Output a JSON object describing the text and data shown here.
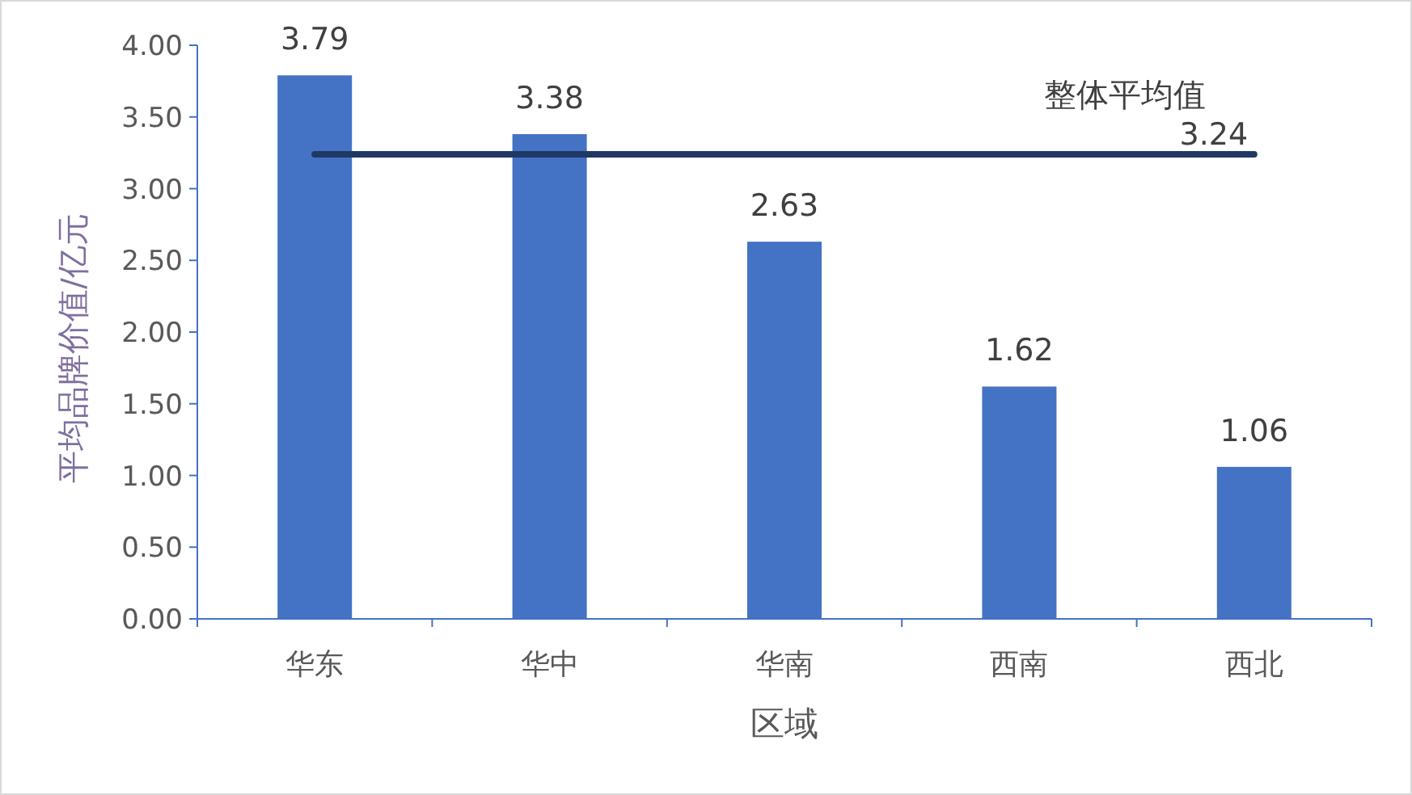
{
  "chart_data": {
    "type": "bar",
    "xlabel": "区域",
    "ylabel": "平均品牌价值/亿元",
    "categories": [
      "华东",
      "华中",
      "华南",
      "西南",
      "西北"
    ],
    "ylim": [
      0,
      4
    ],
    "yticks": [
      "0.00",
      "0.50",
      "1.00",
      "1.50",
      "2.00",
      "2.50",
      "3.00",
      "3.50",
      "4.00"
    ],
    "grid": false,
    "series": [
      {
        "color": "#4472c4",
        "values": [
          3.79,
          3.38,
          2.63,
          1.62,
          1.06
        ],
        "value_labels": [
          "3.79",
          "3.38",
          "2.63",
          "1.62",
          "1.06"
        ]
      },
      {
        "type": "line",
        "name": "整体平均值",
        "color": "#203864",
        "values": [
          3.24,
          3.24,
          3.24,
          3.24,
          3.24
        ],
        "value_labels": [
          null,
          null,
          null,
          null,
          "3.24"
        ]
      }
    ]
  }
}
